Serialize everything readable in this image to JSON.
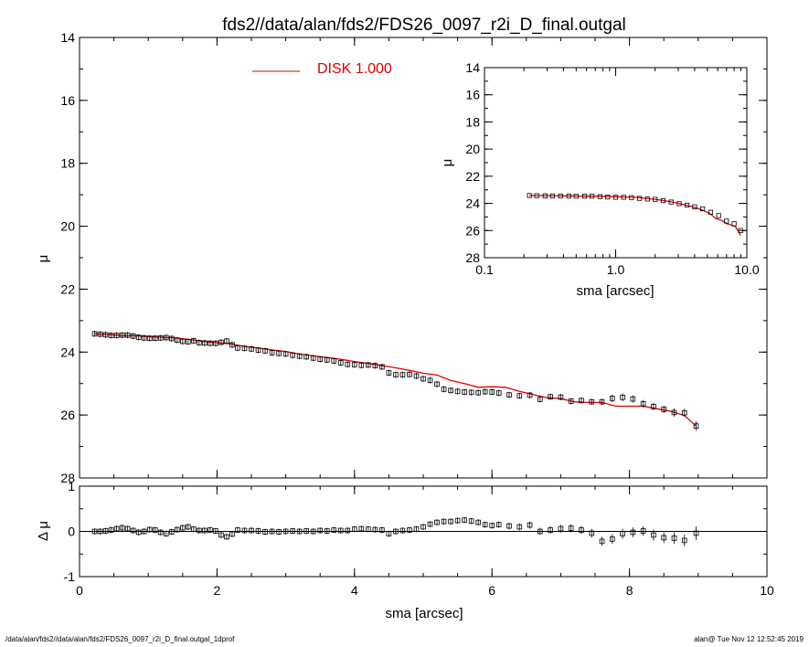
{
  "title": "fds2//data/alan/fds2/FDS26_0097_r2i_D_final.outgal",
  "footer": {
    "left": "/data/alan/fds2//data/alan/fds2/FDS26_0097_r2i_D_final.outgal_1dprof",
    "right": "alan@  Tue Nov 12 12:52:45 2019"
  },
  "colors": {
    "model": "#e00000",
    "data": "#000000"
  },
  "chart_data": [
    {
      "type": "scatter",
      "name": "main-profile",
      "xlabel": "sma [arcsec]",
      "ylabel": "μ",
      "xlim": [
        0,
        10
      ],
      "ylim": [
        28,
        14
      ],
      "x_ticks": [
        0,
        2,
        4,
        6,
        8,
        10
      ],
      "x_tick_labels": [
        "0",
        "2",
        "4",
        "6",
        "8",
        "10"
      ],
      "y_ticks": [
        14,
        16,
        18,
        20,
        22,
        24,
        26,
        28
      ],
      "y_tick_labels": [
        "14",
        "16",
        "18",
        "20",
        "22",
        "24",
        "26",
        "28"
      ],
      "legend": {
        "label": "DISK  1.000",
        "color": "#e00000",
        "position": "top-center"
      },
      "data_points": {
        "x": [
          0.22,
          0.3,
          0.38,
          0.46,
          0.54,
          0.62,
          0.7,
          0.78,
          0.86,
          0.94,
          1.02,
          1.1,
          1.18,
          1.26,
          1.34,
          1.42,
          1.5,
          1.58,
          1.66,
          1.74,
          1.82,
          1.9,
          1.98,
          2.06,
          2.14,
          2.22,
          2.3,
          2.4,
          2.5,
          2.6,
          2.7,
          2.8,
          2.9,
          3.0,
          3.1,
          3.2,
          3.3,
          3.4,
          3.5,
          3.6,
          3.7,
          3.8,
          3.9,
          4.0,
          4.1,
          4.2,
          4.3,
          4.4,
          4.5,
          4.6,
          4.7,
          4.8,
          4.9,
          5.0,
          5.1,
          5.2,
          5.3,
          5.4,
          5.5,
          5.6,
          5.7,
          5.8,
          5.9,
          6.0,
          6.1,
          6.25,
          6.4,
          6.55,
          6.7,
          6.85,
          7.0,
          7.15,
          7.3,
          7.45,
          7.6,
          7.75,
          7.9,
          8.05,
          8.2,
          8.35,
          8.5,
          8.65,
          8.8,
          8.97
        ],
        "y": [
          23.42,
          23.43,
          23.45,
          23.47,
          23.47,
          23.46,
          23.46,
          23.49,
          23.53,
          23.55,
          23.56,
          23.56,
          23.55,
          23.54,
          23.57,
          23.62,
          23.66,
          23.67,
          23.64,
          23.7,
          23.71,
          23.72,
          23.72,
          23.69,
          23.65,
          23.77,
          23.87,
          23.88,
          23.9,
          23.94,
          23.96,
          24.02,
          24.04,
          24.06,
          24.1,
          24.13,
          24.15,
          24.19,
          24.23,
          24.25,
          24.28,
          24.34,
          24.39,
          24.4,
          24.42,
          24.41,
          24.43,
          24.47,
          24.66,
          24.72,
          24.72,
          24.71,
          24.76,
          24.85,
          24.9,
          25.02,
          25.18,
          25.22,
          25.25,
          25.27,
          25.28,
          25.29,
          25.26,
          25.27,
          25.3,
          25.36,
          25.39,
          25.37,
          25.5,
          25.42,
          25.43,
          25.56,
          25.54,
          25.58,
          25.58,
          25.47,
          25.44,
          25.49,
          25.64,
          25.73,
          25.82,
          25.92,
          25.93,
          26.35
        ],
        "errors": [
          0.03,
          0.03,
          0.03,
          0.03,
          0.03,
          0.03,
          0.03,
          0.03,
          0.03,
          0.03,
          0.03,
          0.03,
          0.03,
          0.03,
          0.03,
          0.03,
          0.03,
          0.03,
          0.03,
          0.03,
          0.03,
          0.03,
          0.03,
          0.03,
          0.03,
          0.03,
          0.03,
          0.03,
          0.03,
          0.03,
          0.03,
          0.03,
          0.03,
          0.03,
          0.03,
          0.03,
          0.03,
          0.03,
          0.03,
          0.03,
          0.03,
          0.03,
          0.03,
          0.03,
          0.03,
          0.03,
          0.03,
          0.03,
          0.03,
          0.03,
          0.03,
          0.03,
          0.03,
          0.03,
          0.03,
          0.03,
          0.03,
          0.03,
          0.03,
          0.03,
          0.03,
          0.03,
          0.03,
          0.03,
          0.03,
          0.03,
          0.03,
          0.03,
          0.03,
          0.03,
          0.03,
          0.03,
          0.03,
          0.03,
          0.03,
          0.05,
          0.05,
          0.05,
          0.05,
          0.05,
          0.05,
          0.06,
          0.06,
          0.08
        ]
      },
      "model_line": {
        "name": "DISK  1.000",
        "x": [
          0.22,
          0.4,
          0.6,
          0.8,
          1.0,
          1.2,
          1.4,
          1.6,
          1.8,
          2.0,
          2.2,
          2.4,
          2.6,
          2.8,
          3.0,
          3.2,
          3.4,
          3.6,
          3.8,
          4.0,
          4.2,
          4.4,
          4.6,
          4.8,
          5.0,
          5.2,
          5.4,
          5.6,
          5.8,
          6.0,
          6.2,
          6.4,
          6.6,
          6.8,
          7.0,
          7.2,
          7.4,
          7.6,
          7.8,
          8.0,
          8.2,
          8.4,
          8.6,
          8.8,
          8.97
        ],
        "y": [
          23.42,
          23.44,
          23.47,
          23.48,
          23.51,
          23.53,
          23.55,
          23.6,
          23.66,
          23.7,
          23.74,
          23.82,
          23.87,
          23.93,
          23.98,
          24.06,
          24.12,
          24.17,
          24.23,
          24.3,
          24.36,
          24.43,
          24.5,
          24.58,
          24.67,
          24.73,
          24.9,
          25.0,
          25.12,
          25.1,
          25.12,
          25.25,
          25.35,
          25.45,
          25.48,
          25.58,
          25.6,
          25.6,
          25.72,
          25.72,
          25.72,
          25.8,
          25.88,
          26.02,
          26.35
        ]
      }
    },
    {
      "type": "scatter",
      "name": "residuals",
      "xlabel": "sma [arcsec]",
      "ylabel": "Δ μ",
      "xlim": [
        0,
        10
      ],
      "ylim": [
        -1,
        1
      ],
      "x_ticks": [
        0,
        2,
        4,
        6,
        8,
        10
      ],
      "x_tick_labels": [
        "0",
        "2",
        "4",
        "6",
        "8",
        "10"
      ],
      "y_ticks": [
        1,
        0,
        -1
      ],
      "y_tick_labels": [
        "1",
        "0",
        "-1"
      ],
      "zero_line": true,
      "data_points": {
        "x": [
          0.22,
          0.3,
          0.38,
          0.46,
          0.54,
          0.62,
          0.7,
          0.78,
          0.86,
          0.94,
          1.02,
          1.1,
          1.18,
          1.26,
          1.34,
          1.42,
          1.5,
          1.58,
          1.66,
          1.74,
          1.82,
          1.9,
          1.98,
          2.06,
          2.14,
          2.22,
          2.3,
          2.4,
          2.5,
          2.6,
          2.7,
          2.8,
          2.9,
          3.0,
          3.1,
          3.2,
          3.3,
          3.4,
          3.5,
          3.6,
          3.7,
          3.8,
          3.9,
          4.0,
          4.1,
          4.2,
          4.3,
          4.4,
          4.5,
          4.6,
          4.7,
          4.8,
          4.9,
          5.0,
          5.1,
          5.2,
          5.3,
          5.4,
          5.5,
          5.6,
          5.7,
          5.8,
          5.9,
          6.0,
          6.1,
          6.25,
          6.4,
          6.55,
          6.7,
          6.85,
          7.0,
          7.15,
          7.3,
          7.45,
          7.6,
          7.75,
          7.9,
          8.05,
          8.2,
          8.35,
          8.5,
          8.65,
          8.8,
          8.97
        ],
        "y": [
          0.0,
          0.0,
          0.01,
          0.03,
          0.06,
          0.08,
          0.06,
          0.02,
          -0.02,
          0.0,
          0.04,
          0.03,
          -0.02,
          -0.05,
          -0.01,
          0.04,
          0.08,
          0.1,
          0.05,
          0.02,
          0.02,
          0.03,
          0.01,
          -0.08,
          -0.12,
          -0.06,
          0.03,
          0.02,
          0.02,
          0.01,
          -0.01,
          0.0,
          -0.01,
          0.0,
          0.01,
          0.0,
          0.01,
          0.0,
          0.02,
          0.01,
          0.03,
          0.02,
          0.02,
          0.05,
          0.06,
          0.05,
          0.04,
          0.03,
          -0.05,
          0.0,
          0.02,
          0.03,
          0.05,
          0.1,
          0.16,
          0.2,
          0.22,
          0.22,
          0.24,
          0.25,
          0.23,
          0.2,
          0.15,
          0.13,
          0.15,
          0.12,
          0.1,
          0.14,
          0.0,
          0.03,
          0.06,
          0.07,
          0.03,
          -0.04,
          -0.22,
          -0.17,
          -0.05,
          -0.02,
          0.01,
          -0.08,
          -0.14,
          -0.15,
          -0.2,
          -0.04
        ],
        "errors": [
          0.02,
          0.02,
          0.02,
          0.02,
          0.02,
          0.02,
          0.02,
          0.02,
          0.02,
          0.02,
          0.02,
          0.02,
          0.02,
          0.02,
          0.02,
          0.02,
          0.02,
          0.02,
          0.02,
          0.02,
          0.02,
          0.02,
          0.02,
          0.02,
          0.02,
          0.02,
          0.02,
          0.02,
          0.02,
          0.02,
          0.02,
          0.02,
          0.02,
          0.02,
          0.02,
          0.02,
          0.02,
          0.02,
          0.02,
          0.02,
          0.02,
          0.02,
          0.02,
          0.02,
          0.02,
          0.02,
          0.02,
          0.02,
          0.02,
          0.02,
          0.02,
          0.02,
          0.02,
          0.02,
          0.02,
          0.02,
          0.02,
          0.02,
          0.02,
          0.02,
          0.02,
          0.02,
          0.02,
          0.02,
          0.02,
          0.03,
          0.03,
          0.03,
          0.03,
          0.03,
          0.04,
          0.04,
          0.04,
          0.05,
          0.05,
          0.06,
          0.06,
          0.06,
          0.06,
          0.07,
          0.07,
          0.08,
          0.08,
          0.1
        ]
      }
    },
    {
      "type": "line",
      "name": "inset-log-profile",
      "xlabel": "sma [arcsec]",
      "ylabel": "μ",
      "x_scale": "log",
      "xlim": [
        0.1,
        10
      ],
      "ylim": [
        28,
        14
      ],
      "x_ticks": [
        0.1,
        1,
        10
      ],
      "x_tick_labels": [
        "0.1",
        "1.0",
        "10.0"
      ],
      "y_ticks": [
        14,
        16,
        18,
        20,
        22,
        24,
        26,
        28
      ],
      "y_tick_labels": [
        "14",
        "16",
        "18",
        "20",
        "22",
        "24",
        "26",
        "28"
      ],
      "data_points": {
        "x": [
          0.22,
          0.25,
          0.29,
          0.33,
          0.38,
          0.44,
          0.5,
          0.58,
          0.66,
          0.76,
          0.87,
          1.0,
          1.15,
          1.32,
          1.52,
          1.75,
          2.0,
          2.3,
          2.65,
          3.05,
          3.5,
          4.0,
          4.6,
          5.3,
          6.1,
          7.0,
          8.0,
          8.97
        ],
        "y": [
          23.42,
          23.43,
          23.44,
          23.45,
          23.45,
          23.46,
          23.47,
          23.47,
          23.47,
          23.5,
          23.53,
          23.55,
          23.55,
          23.57,
          23.63,
          23.68,
          23.7,
          23.8,
          23.9,
          24.02,
          24.13,
          24.25,
          24.4,
          24.65,
          24.9,
          25.3,
          25.5,
          26.0
        ]
      },
      "model_line": {
        "x": [
          0.22,
          0.3,
          0.4,
          0.5,
          0.6,
          0.8,
          1.0,
          1.2,
          1.4,
          1.6,
          1.8,
          2.0,
          2.4,
          2.8,
          3.2,
          3.6,
          4.0,
          4.6,
          5.2,
          5.8,
          6.4,
          7.0,
          7.6,
          8.2,
          8.97
        ],
        "y": [
          23.42,
          23.43,
          23.44,
          23.46,
          23.47,
          23.48,
          23.51,
          23.53,
          23.55,
          23.6,
          23.66,
          23.7,
          23.82,
          23.93,
          24.06,
          24.17,
          24.3,
          24.5,
          24.73,
          25.12,
          25.25,
          25.48,
          25.6,
          25.72,
          26.35
        ]
      }
    }
  ]
}
